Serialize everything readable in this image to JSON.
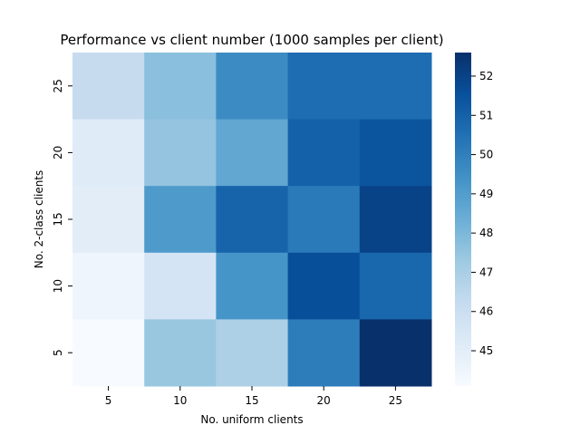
{
  "chart_data": {
    "type": "heatmap",
    "title": "Performance vs client number (1000 samples per client)",
    "xlabel": "No. uniform clients",
    "ylabel": "No. 2-class clients",
    "x_categories": [
      "5",
      "10",
      "15",
      "20",
      "25"
    ],
    "y_categories": [
      "25",
      "20",
      "15",
      "10",
      "5"
    ],
    "values": [
      [
        46.2,
        47.7,
        49.6,
        50.6,
        50.6
      ],
      [
        45.1,
        47.5,
        48.6,
        51.0,
        51.4
      ],
      [
        45.0,
        49.1,
        50.9,
        50.2,
        52.0
      ],
      [
        44.5,
        45.6,
        49.3,
        51.6,
        50.8
      ],
      [
        44.1,
        47.4,
        46.9,
        50.1,
        52.6
      ]
    ],
    "colorbar": {
      "min": 44.1,
      "max": 52.6,
      "ticks": [
        "45",
        "46",
        "47",
        "48",
        "49",
        "50",
        "51",
        "52"
      ]
    },
    "colormap": "Blues"
  }
}
